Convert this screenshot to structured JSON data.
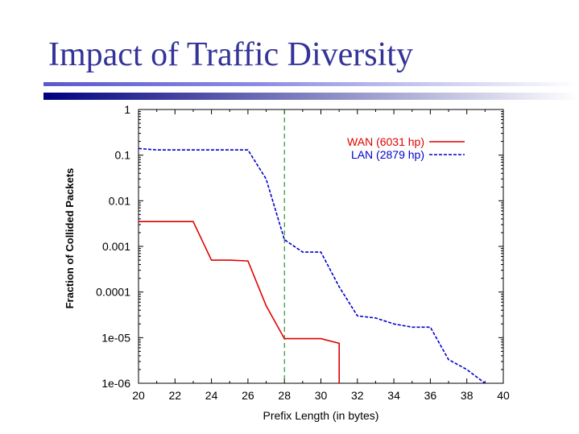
{
  "slide": {
    "title": "Impact of Traffic Diversity"
  },
  "colors": {
    "title": "#333399",
    "wan": "#e00000",
    "lan": "#0000cc",
    "marker": "#008000"
  },
  "chart_data": {
    "type": "line",
    "title": "",
    "xlabel": "Prefix Length (in bytes)",
    "ylabel": "Fraction of Collided Packets",
    "xlim": [
      20,
      40
    ],
    "ylim": [
      1e-06,
      1
    ],
    "yscale": "log",
    "xticks": [
      "20",
      "22",
      "24",
      "26",
      "28",
      "30",
      "32",
      "34",
      "36",
      "38",
      "40"
    ],
    "yticks": [
      "1e-06",
      "1e-05",
      "0.0001",
      "0.001",
      "0.01",
      "0.1",
      "1"
    ],
    "ytick_values": [
      1e-06,
      1e-05,
      0.0001,
      0.001,
      0.01,
      0.1,
      1
    ],
    "xtick_values": [
      20,
      22,
      24,
      26,
      28,
      30,
      32,
      34,
      36,
      38,
      40
    ],
    "vertical_marker_x": 28,
    "legend_position": "top-right",
    "grid": false,
    "series": [
      {
        "name": "WAN (6031 hp)",
        "style": "solid",
        "x": [
          20,
          21,
          22,
          23,
          24,
          25,
          26,
          27,
          28,
          29,
          30,
          31,
          31
        ],
        "y": [
          0.0035,
          0.0035,
          0.0035,
          0.0035,
          0.0005,
          0.0005,
          0.00048,
          5e-05,
          9.5e-06,
          9.5e-06,
          9.5e-06,
          7.5e-06,
          1e-06
        ]
      },
      {
        "name": "LAN (2879 hp)",
        "style": "dashed",
        "x": [
          20,
          21,
          22,
          23,
          24,
          25,
          26,
          27,
          28,
          29,
          30,
          31,
          32,
          33,
          34,
          35,
          36,
          37,
          38,
          39
        ],
        "y": [
          0.14,
          0.13,
          0.13,
          0.13,
          0.13,
          0.13,
          0.13,
          0.03,
          0.0014,
          0.00075,
          0.00075,
          0.00013,
          3e-05,
          2.7e-05,
          2e-05,
          1.7e-05,
          1.7e-05,
          3.3e-06,
          2e-06,
          1e-06
        ]
      }
    ]
  }
}
